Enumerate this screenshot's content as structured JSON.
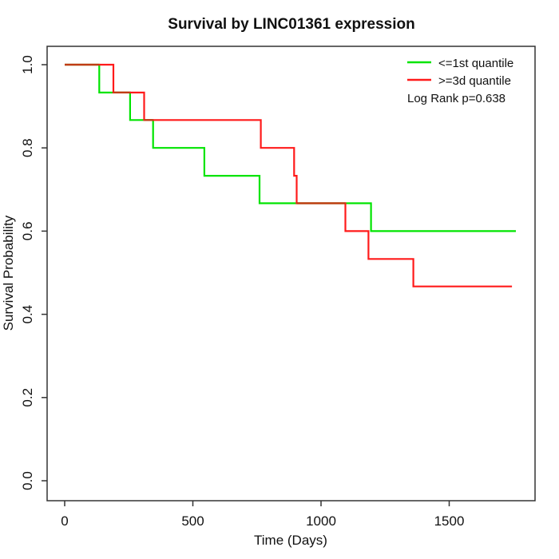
{
  "title": "Survival by LINC01361 expression",
  "axes": {
    "x": {
      "label": "Time (Days)",
      "ticks": [
        {
          "label": "0",
          "value": 0
        },
        {
          "label": "500",
          "value": 500
        },
        {
          "label": "1000",
          "value": 1000
        },
        {
          "label": "1500",
          "value": 1500
        }
      ]
    },
    "y": {
      "label": "Survival Probability",
      "ticks": [
        {
          "label": "0.0",
          "value": 0.0
        },
        {
          "label": "0.2",
          "value": 0.2
        },
        {
          "label": "0.4",
          "value": 0.4
        },
        {
          "label": "0.6",
          "value": 0.6
        },
        {
          "label": "0.8",
          "value": 0.8
        },
        {
          "label": "1.0",
          "value": 1.0
        }
      ]
    }
  },
  "legend": {
    "entries": [
      {
        "label": "<=1st quantile",
        "color": "#00e400"
      },
      {
        "label": ">=3d quantile",
        "color": "#ff1a1a"
      }
    ],
    "annotation": "Log Rank p=0.638"
  },
  "chart_data": {
    "type": "line",
    "subtype": "kaplan-meier-step",
    "title": "Survival by LINC01361 expression",
    "xlabel": "Time (Days)",
    "ylabel": "Survival Probability",
    "xlim": [
      0,
      1830
    ],
    "ylim": [
      0.0,
      1.0
    ],
    "grid": false,
    "legend_position": "top-right",
    "log_rank_p": 0.638,
    "overlap_color": "#c03c14",
    "series": [
      {
        "name": "<=1st quantile",
        "color": "#00e400",
        "steps": [
          [
            0,
            1.0
          ],
          [
            135,
            0.933
          ],
          [
            255,
            0.867
          ],
          [
            345,
            0.8
          ],
          [
            545,
            0.733
          ],
          [
            760,
            0.667
          ],
          [
            1195,
            0.6
          ]
        ],
        "end_day": 1760
      },
      {
        "name": ">=3d quantile",
        "color": "#ff1a1a",
        "steps": [
          [
            0,
            1.0
          ],
          [
            190,
            0.933
          ],
          [
            310,
            0.867
          ],
          [
            765,
            0.8
          ],
          [
            895,
            0.733
          ],
          [
            905,
            0.667
          ],
          [
            1095,
            0.6
          ],
          [
            1185,
            0.533
          ],
          [
            1360,
            0.467
          ]
        ],
        "end_day": 1745
      }
    ],
    "overlap_segments": [
      {
        "value": 1.0,
        "from_day": 0,
        "to_day": 135
      },
      {
        "value": 0.933,
        "from_day": 190,
        "to_day": 255
      },
      {
        "value": 0.867,
        "from_day": 310,
        "to_day": 345
      },
      {
        "value": 0.667,
        "from_day": 905,
        "to_day": 1095
      }
    ]
  }
}
